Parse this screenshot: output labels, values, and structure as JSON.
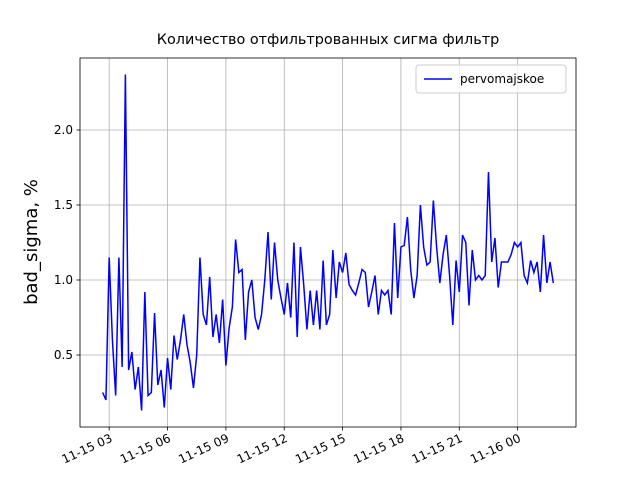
{
  "chart_data": {
    "type": "line",
    "title": "Количество отфильтрованных сигма фильтр",
    "y_label": "bad_sigma, %",
    "legend_loc": "upper right",
    "grid": true,
    "xlim": [
      "11-15 01:30",
      "11-16 03:00"
    ],
    "ylim": [
      0.02,
      2.48
    ],
    "xticks": [
      {
        "value": "11-15 03:00",
        "label": "11-15 03"
      },
      {
        "value": "11-15 06:00",
        "label": "11-15 06"
      },
      {
        "value": "11-15 09:00",
        "label": "11-15 09"
      },
      {
        "value": "11-15 12:00",
        "label": "11-15 12"
      },
      {
        "value": "11-15 15:00",
        "label": "11-15 15"
      },
      {
        "value": "11-15 18:00",
        "label": "11-15 18"
      },
      {
        "value": "11-15 21:00",
        "label": "11-15 21"
      },
      {
        "value": "11-16 00:00",
        "label": "11-16 00"
      }
    ],
    "yticks": [
      0.5,
      {
        "value": 1,
        "label": "1.0"
      },
      1.5,
      {
        "value": 2,
        "label": "2.0"
      }
    ],
    "x": [
      "11-15 02:40",
      "11-15 02:50",
      "11-15 03:00",
      "11-15 03:10",
      "11-15 03:20",
      "11-15 03:30",
      "11-15 03:40",
      "11-15 03:50",
      "11-15 04:00",
      "11-15 04:10",
      "11-15 04:20",
      "11-15 04:30",
      "11-15 04:40",
      "11-15 04:50",
      "11-15 05:00",
      "11-15 05:10",
      "11-15 05:20",
      "11-15 05:30",
      "11-15 05:40",
      "11-15 05:50",
      "11-15 06:00",
      "11-15 06:10",
      "11-15 06:20",
      "11-15 06:30",
      "11-15 06:40",
      "11-15 06:50",
      "11-15 07:00",
      "11-15 07:10",
      "11-15 07:20",
      "11-15 07:30",
      "11-15 07:40",
      "11-15 07:50",
      "11-15 08:00",
      "11-15 08:10",
      "11-15 08:20",
      "11-15 08:30",
      "11-15 08:40",
      "11-15 08:50",
      "11-15 09:00",
      "11-15 09:10",
      "11-15 09:20",
      "11-15 09:30",
      "11-15 09:40",
      "11-15 09:50",
      "11-15 10:00",
      "11-15 10:10",
      "11-15 10:20",
      "11-15 10:30",
      "11-15 10:40",
      "11-15 10:50",
      "11-15 11:00",
      "11-15 11:10",
      "11-15 11:20",
      "11-15 11:30",
      "11-15 11:40",
      "11-15 11:50",
      "11-15 12:00",
      "11-15 12:10",
      "11-15 12:20",
      "11-15 12:30",
      "11-15 12:40",
      "11-15 12:50",
      "11-15 13:00",
      "11-15 13:10",
      "11-15 13:20",
      "11-15 13:30",
      "11-15 13:40",
      "11-15 13:50",
      "11-15 14:00",
      "11-15 14:10",
      "11-15 14:20",
      "11-15 14:30",
      "11-15 14:40",
      "11-15 14:50",
      "11-15 15:00",
      "11-15 15:10",
      "11-15 15:20",
      "11-15 15:30",
      "11-15 15:40",
      "11-15 15:50",
      "11-15 16:00",
      "11-15 16:10",
      "11-15 16:20",
      "11-15 16:30",
      "11-15 16:40",
      "11-15 16:50",
      "11-15 17:00",
      "11-15 17:10",
      "11-15 17:20",
      "11-15 17:30",
      "11-15 17:40",
      "11-15 17:50",
      "11-15 18:00",
      "11-15 18:10",
      "11-15 18:20",
      "11-15 18:30",
      "11-15 18:40",
      "11-15 18:50",
      "11-15 19:00",
      "11-15 19:10",
      "11-15 19:20",
      "11-15 19:30",
      "11-15 19:40",
      "11-15 19:50",
      "11-15 20:00",
      "11-15 20:10",
      "11-15 20:20",
      "11-15 20:30",
      "11-15 20:40",
      "11-15 20:50",
      "11-15 21:00",
      "11-15 21:10",
      "11-15 21:20",
      "11-15 21:30",
      "11-15 21:40",
      "11-15 21:50",
      "11-15 22:00",
      "11-15 22:10",
      "11-15 22:20",
      "11-15 22:30",
      "11-15 22:40",
      "11-15 22:50",
      "11-15 23:00",
      "11-15 23:10",
      "11-15 23:20",
      "11-15 23:30",
      "11-15 23:40",
      "11-15 23:50",
      "11-16 00:00",
      "11-16 00:10",
      "11-16 00:20",
      "11-16 00:30",
      "11-16 00:40",
      "11-16 00:50",
      "11-16 01:00",
      "11-16 01:10",
      "11-16 01:20",
      "11-16 01:30",
      "11-16 01:40",
      "11-16 01:50"
    ],
    "series": [
      {
        "name": "pervomajskoe",
        "color": "#0000ff",
        "values": [
          0.25,
          0.2,
          1.15,
          0.6,
          0.23,
          1.15,
          0.42,
          2.37,
          0.4,
          0.52,
          0.27,
          0.42,
          0.13,
          0.92,
          0.23,
          0.25,
          0.78,
          0.3,
          0.4,
          0.15,
          0.48,
          0.27,
          0.63,
          0.47,
          0.6,
          0.77,
          0.57,
          0.45,
          0.28,
          0.5,
          1.15,
          0.77,
          0.7,
          1.02,
          0.62,
          0.77,
          0.58,
          0.87,
          0.43,
          0.68,
          0.82,
          1.27,
          1.05,
          1.07,
          0.6,
          0.92,
          1.0,
          0.75,
          0.67,
          0.77,
          1.0,
          1.32,
          0.87,
          1.25,
          1.0,
          0.88,
          0.77,
          0.98,
          0.75,
          1.25,
          0.62,
          1.22,
          0.97,
          0.67,
          0.93,
          0.7,
          0.93,
          0.67,
          1.13,
          0.7,
          0.77,
          1.2,
          0.88,
          1.12,
          1.05,
          1.18,
          0.97,
          0.93,
          0.9,
          0.98,
          1.07,
          1.05,
          0.82,
          0.92,
          1.03,
          0.77,
          0.93,
          0.9,
          0.93,
          0.77,
          1.38,
          0.88,
          1.22,
          1.23,
          1.42,
          1.07,
          0.88,
          1.03,
          1.5,
          1.22,
          1.1,
          1.12,
          1.53,
          1.22,
          0.98,
          1.17,
          1.3,
          1.03,
          0.7,
          1.13,
          0.92,
          1.3,
          1.25,
          0.83,
          1.2,
          1.0,
          1.03,
          1.0,
          1.03,
          1.72,
          1.12,
          1.28,
          0.95,
          1.12,
          1.12,
          1.12,
          1.17,
          1.25,
          1.22,
          1.25,
          1.03,
          0.98,
          1.13,
          1.05,
          1.12,
          0.92,
          1.3,
          0.98,
          1.12,
          0.98
        ]
      }
    ]
  }
}
